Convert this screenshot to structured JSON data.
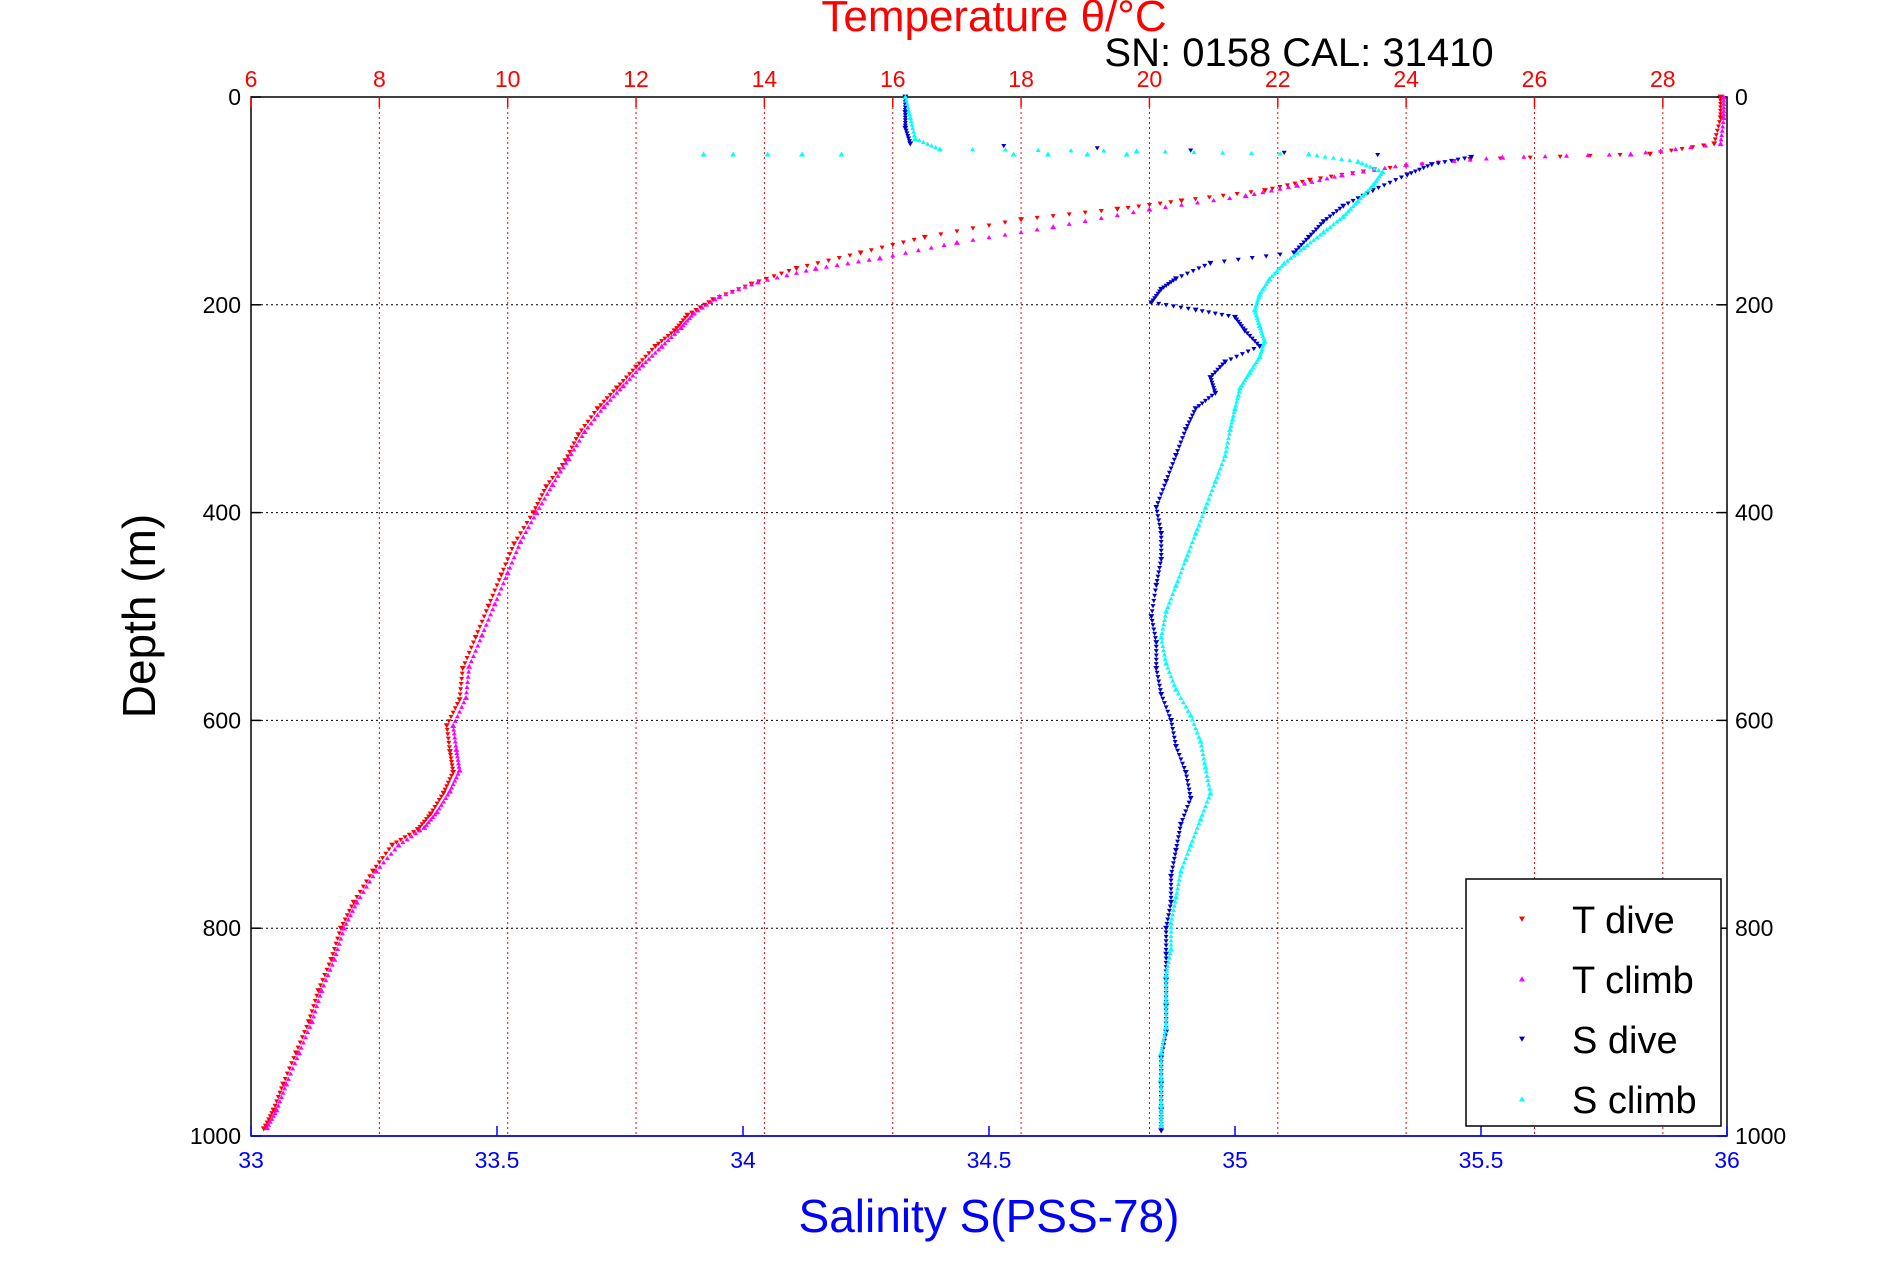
{
  "colors": {
    "temperature_axis": "#ff0000",
    "salinity_axis": "#0000ff",
    "t_dive": "#ff0000",
    "t_climb": "#ff00ff",
    "s_dive": "#0000cc",
    "s_climb": "#00ffff",
    "depth_axis": "#000000",
    "grid_temperature": "#ff0000",
    "grid_depth": "#000000"
  },
  "chart_data": {
    "type": "scatter",
    "title": "Temperature θ/°C",
    "subtitle": "SN: 0158  CAL: 31410",
    "xlabel": "Salinity S(PSS-78)",
    "ylabel": "Depth (m)",
    "x_top": {
      "label": "Temperature θ/°C",
      "range": [
        6,
        29
      ],
      "ticks": [
        6,
        8,
        10,
        12,
        14,
        16,
        18,
        20,
        22,
        24,
        26,
        28
      ]
    },
    "x_bottom": {
      "label": "Salinity S(PSS-78)",
      "range": [
        33,
        36
      ],
      "ticks": [
        33,
        33.5,
        34,
        34.5,
        35,
        35.5,
        36
      ]
    },
    "y": {
      "range": [
        0,
        1000
      ],
      "inverted": true,
      "ticks": [
        0,
        200,
        400,
        600,
        800,
        1000
      ]
    },
    "grid": "vertical lines at temperature ticks (red dotted), horizontal lines at depth ticks (black dotted)",
    "legend": {
      "position": "bottom-right",
      "entries": [
        "T dive",
        "T climb",
        "S dive",
        "S climb"
      ]
    },
    "series": [
      {
        "name": "T dive",
        "axis": "temperature",
        "marker": "down-triangle",
        "points": [
          [
            28.9,
            0
          ],
          [
            28.9,
            20
          ],
          [
            28.8,
            45
          ],
          [
            27.8,
            55
          ],
          [
            25.0,
            60
          ],
          [
            23.5,
            70
          ],
          [
            22.5,
            80
          ],
          [
            21.8,
            90
          ],
          [
            20.5,
            100
          ],
          [
            19.5,
            108
          ],
          [
            18.0,
            118
          ],
          [
            16.5,
            135
          ],
          [
            15.5,
            150
          ],
          [
            14.5,
            165
          ],
          [
            13.8,
            180
          ],
          [
            13.2,
            195
          ],
          [
            12.8,
            210
          ],
          [
            12.6,
            225
          ],
          [
            12.3,
            240
          ],
          [
            12.0,
            260
          ],
          [
            11.7,
            280
          ],
          [
            11.4,
            300
          ],
          [
            11.1,
            325
          ],
          [
            10.9,
            350
          ],
          [
            10.6,
            375
          ],
          [
            10.4,
            400
          ],
          [
            10.1,
            430
          ],
          [
            9.9,
            460
          ],
          [
            9.7,
            490
          ],
          [
            9.5,
            520
          ],
          [
            9.3,
            550
          ],
          [
            9.25,
            580
          ],
          [
            9.05,
            605
          ],
          [
            9.1,
            630
          ],
          [
            9.15,
            650
          ],
          [
            9.0,
            670
          ],
          [
            8.8,
            690
          ],
          [
            8.6,
            705
          ],
          [
            8.2,
            720
          ],
          [
            7.9,
            745
          ],
          [
            7.6,
            775
          ],
          [
            7.4,
            800
          ],
          [
            7.25,
            830
          ],
          [
            7.05,
            860
          ],
          [
            6.9,
            890
          ],
          [
            6.7,
            920
          ],
          [
            6.5,
            950
          ],
          [
            6.35,
            975
          ],
          [
            6.2,
            993
          ]
        ]
      },
      {
        "name": "T climb",
        "axis": "temperature",
        "marker": "up-triangle",
        "points": [
          [
            28.95,
            0
          ],
          [
            28.95,
            20
          ],
          [
            28.9,
            45
          ],
          [
            27.5,
            55
          ],
          [
            25.5,
            58
          ],
          [
            24.0,
            65
          ],
          [
            23.0,
            75
          ],
          [
            22.3,
            85
          ],
          [
            21.5,
            95
          ],
          [
            20.0,
            108
          ],
          [
            18.5,
            125
          ],
          [
            17.0,
            140
          ],
          [
            15.8,
            155
          ],
          [
            14.8,
            165
          ],
          [
            13.9,
            178
          ],
          [
            13.3,
            192
          ],
          [
            12.9,
            208
          ],
          [
            12.7,
            222
          ],
          [
            12.4,
            240
          ],
          [
            12.1,
            258
          ],
          [
            11.8,
            278
          ],
          [
            11.5,
            298
          ],
          [
            11.2,
            322
          ],
          [
            10.95,
            348
          ],
          [
            10.7,
            373
          ],
          [
            10.45,
            400
          ],
          [
            10.2,
            428
          ],
          [
            10.0,
            458
          ],
          [
            9.8,
            488
          ],
          [
            9.6,
            518
          ],
          [
            9.4,
            548
          ],
          [
            9.35,
            578
          ],
          [
            9.15,
            605
          ],
          [
            9.2,
            628
          ],
          [
            9.25,
            648
          ],
          [
            9.1,
            668
          ],
          [
            8.9,
            688
          ],
          [
            8.7,
            703
          ],
          [
            8.3,
            720
          ],
          [
            7.95,
            745
          ],
          [
            7.65,
            775
          ],
          [
            7.45,
            800
          ],
          [
            7.3,
            830
          ],
          [
            7.1,
            860
          ],
          [
            6.95,
            890
          ],
          [
            6.75,
            920
          ],
          [
            6.55,
            950
          ],
          [
            6.4,
            975
          ],
          [
            6.25,
            992
          ]
        ]
      },
      {
        "name": "S dive",
        "axis": "salinity",
        "marker": "down-triangle",
        "points": [
          [
            34.33,
            0
          ],
          [
            34.33,
            15
          ],
          [
            34.33,
            30
          ],
          [
            34.34,
            45
          ],
          [
            35.48,
            58
          ],
          [
            35.4,
            65
          ],
          [
            35.35,
            75
          ],
          [
            35.28,
            90
          ],
          [
            35.22,
            105
          ],
          [
            35.18,
            120
          ],
          [
            35.15,
            135
          ],
          [
            35.12,
            150
          ],
          [
            34.95,
            160
          ],
          [
            34.88,
            175
          ],
          [
            34.85,
            185
          ],
          [
            34.83,
            198
          ],
          [
            34.92,
            205
          ],
          [
            35.0,
            212
          ],
          [
            35.02,
            225
          ],
          [
            35.05,
            240
          ],
          [
            34.98,
            255
          ],
          [
            34.95,
            270
          ],
          [
            34.96,
            285
          ],
          [
            34.92,
            300
          ],
          [
            34.9,
            320
          ],
          [
            34.88,
            345
          ],
          [
            34.86,
            370
          ],
          [
            34.84,
            395
          ],
          [
            34.85,
            420
          ],
          [
            34.85,
            445
          ],
          [
            34.84,
            470
          ],
          [
            34.83,
            500
          ],
          [
            34.84,
            525
          ],
          [
            34.84,
            550
          ],
          [
            34.85,
            575
          ],
          [
            34.87,
            600
          ],
          [
            34.88,
            625
          ],
          [
            34.9,
            650
          ],
          [
            34.91,
            675
          ],
          [
            34.89,
            700
          ],
          [
            34.88,
            725
          ],
          [
            34.87,
            750
          ],
          [
            34.87,
            775
          ],
          [
            34.86,
            800
          ],
          [
            34.86,
            825
          ],
          [
            34.86,
            850
          ],
          [
            34.86,
            875
          ],
          [
            34.86,
            900
          ],
          [
            34.85,
            925
          ],
          [
            34.85,
            950
          ],
          [
            34.85,
            975
          ],
          [
            34.85,
            995
          ]
        ]
      },
      {
        "name": "S climb",
        "axis": "salinity",
        "marker": "up-triangle",
        "points": [
          [
            34.33,
            0
          ],
          [
            34.34,
            20
          ],
          [
            34.35,
            40
          ],
          [
            34.4,
            50
          ],
          [
            34.8,
            52
          ],
          [
            35.15,
            55
          ],
          [
            35.25,
            62
          ],
          [
            35.3,
            72
          ],
          [
            35.28,
            85
          ],
          [
            35.25,
            100
          ],
          [
            35.22,
            115
          ],
          [
            35.18,
            130
          ],
          [
            35.14,
            145
          ],
          [
            35.1,
            160
          ],
          [
            35.07,
            175
          ],
          [
            35.05,
            190
          ],
          [
            35.04,
            205
          ],
          [
            35.05,
            220
          ],
          [
            35.06,
            235
          ],
          [
            35.05,
            250
          ],
          [
            35.03,
            265
          ],
          [
            35.01,
            280
          ],
          [
            35.0,
            300
          ],
          [
            34.99,
            320
          ],
          [
            34.98,
            345
          ],
          [
            34.96,
            370
          ],
          [
            34.94,
            395
          ],
          [
            34.92,
            420
          ],
          [
            34.9,
            445
          ],
          [
            34.88,
            470
          ],
          [
            34.86,
            495
          ],
          [
            34.85,
            520
          ],
          [
            34.86,
            545
          ],
          [
            34.88,
            570
          ],
          [
            34.91,
            595
          ],
          [
            34.93,
            620
          ],
          [
            34.94,
            645
          ],
          [
            34.95,
            670
          ],
          [
            34.93,
            695
          ],
          [
            34.91,
            720
          ],
          [
            34.89,
            745
          ],
          [
            34.88,
            770
          ],
          [
            34.87,
            795
          ],
          [
            34.87,
            820
          ],
          [
            34.86,
            845
          ],
          [
            34.86,
            870
          ],
          [
            34.86,
            895
          ],
          [
            34.85,
            920
          ],
          [
            34.85,
            945
          ],
          [
            34.85,
            970
          ],
          [
            34.85,
            990
          ]
        ]
      }
    ],
    "scatter_outliers": {
      "s_climb_surface_spray": [
        [
          33.92,
          55
        ],
        [
          33.98,
          55
        ],
        [
          34.05,
          55
        ],
        [
          34.12,
          55
        ],
        [
          34.2,
          55
        ],
        [
          34.55,
          55
        ],
        [
          34.62,
          55
        ],
        [
          34.7,
          55
        ],
        [
          34.78,
          55
        ]
      ]
    }
  }
}
